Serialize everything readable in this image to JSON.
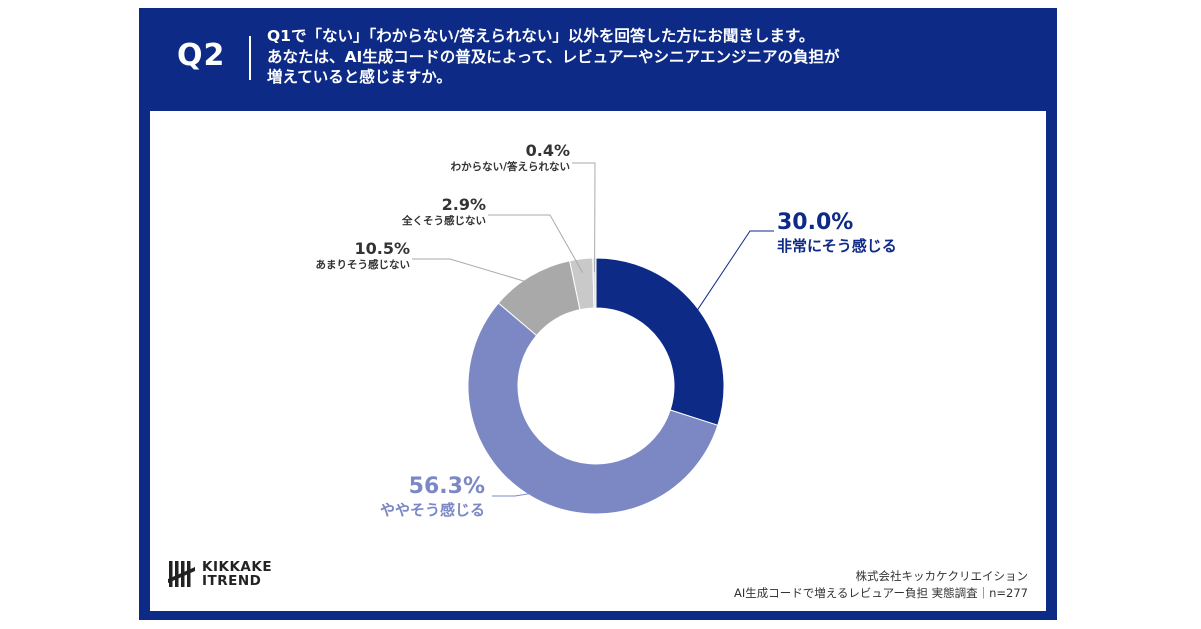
{
  "header": {
    "q_label": "Q2",
    "question": "Q1で「ない」「わからない/答えられない」以外を回答した方にお聞きします。\nあなたは、AI生成コードの普及によって、レビュアーやシニアエンジニアの負担が\n増えていると感じますか。"
  },
  "colors": {
    "header_bg": "#0d2a86",
    "strong": "#0d2a86",
    "somewhat": "#7b88c4",
    "not_much": "#a9a9a9",
    "not_at_all": "#c9c9c9",
    "unknown": "#dedede"
  },
  "chart_data": {
    "type": "pie",
    "donut": true,
    "start_angle_deg": 0,
    "direction": "clockwise",
    "slices": [
      {
        "label": "非常にそう感じる",
        "value": 30.0,
        "pct_text": "30.0%",
        "color": "#0d2a86"
      },
      {
        "label": "ややそう感じる",
        "value": 56.3,
        "pct_text": "56.3%",
        "color": "#7b88c4"
      },
      {
        "label": "あまりそう感じない",
        "value": 10.5,
        "pct_text": "10.5%",
        "color": "#a9a9a9"
      },
      {
        "label": "全くそう感じない",
        "value": 2.9,
        "pct_text": "2.9%",
        "color": "#c9c9c9"
      },
      {
        "label": "わからない/答えられない",
        "value": 0.4,
        "pct_text": "0.4%",
        "color": "#dedede"
      }
    ],
    "n": 277
  },
  "logo": {
    "line1": "KIKKAKE",
    "line2": "ITREND"
  },
  "credit": {
    "company": "株式会社キッカケクリエイション",
    "survey": "AI生成コードで増えるレビュアー負担 実態調査｜n=277"
  }
}
